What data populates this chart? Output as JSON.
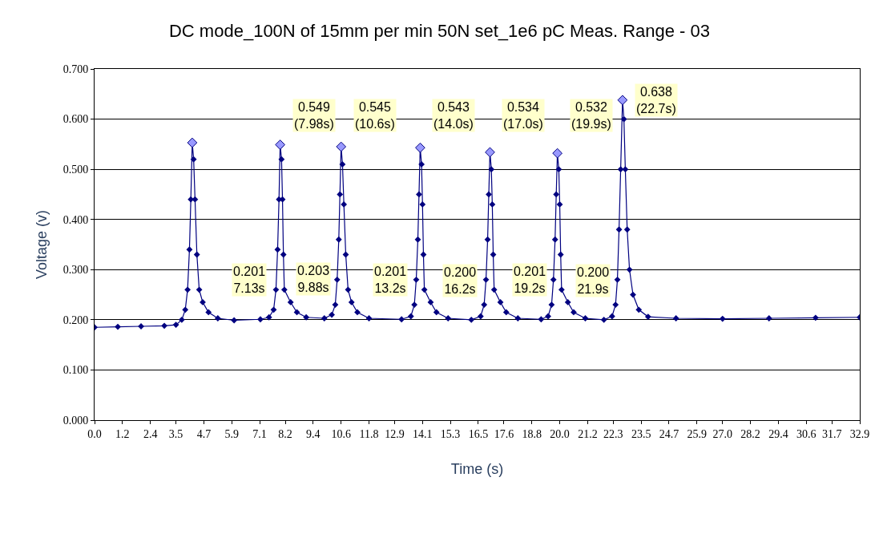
{
  "chart_data": {
    "type": "line",
    "title": "DC mode_100N of 15mm per min 50N set_1e6 pC Meas. Range - 03",
    "xlabel": "Time (s)",
    "ylabel": "Voltage (v)",
    "series": [
      {
        "color": "#000080",
        "x": [
          0.0,
          1.0,
          2.0,
          3.0,
          3.5,
          3.75,
          3.9,
          4.0,
          4.08,
          4.14,
          4.2,
          4.26,
          4.32,
          4.4,
          4.5,
          4.65,
          4.9,
          5.3,
          6.0,
          7.13,
          7.5,
          7.7,
          7.8,
          7.87,
          7.93,
          7.98,
          8.04,
          8.08,
          8.12,
          8.16,
          8.43,
          8.7,
          9.1,
          9.88,
          10.2,
          10.35,
          10.43,
          10.5,
          10.55,
          10.6,
          10.66,
          10.72,
          10.8,
          10.9,
          11.05,
          11.3,
          11.8,
          13.2,
          13.6,
          13.75,
          13.83,
          13.9,
          13.95,
          14.0,
          14.06,
          14.1,
          14.14,
          14.18,
          14.45,
          14.7,
          15.2,
          16.2,
          16.6,
          16.75,
          16.83,
          16.9,
          16.95,
          17.0,
          17.06,
          17.1,
          17.14,
          17.18,
          17.45,
          17.7,
          18.2,
          19.2,
          19.5,
          19.65,
          19.73,
          19.8,
          19.85,
          19.9,
          19.96,
          20.0,
          20.04,
          20.08,
          20.35,
          20.6,
          21.1,
          21.9,
          22.25,
          22.4,
          22.48,
          22.55,
          22.62,
          22.7,
          22.76,
          22.82,
          22.9,
          23.0,
          23.15,
          23.4,
          23.8,
          25.0,
          27.0,
          29.0,
          31.0,
          32.9
        ],
        "values": [
          0.185,
          0.186,
          0.187,
          0.188,
          0.19,
          0.2,
          0.22,
          0.26,
          0.34,
          0.44,
          0.553,
          0.52,
          0.44,
          0.33,
          0.26,
          0.235,
          0.215,
          0.203,
          0.199,
          0.201,
          0.205,
          0.22,
          0.26,
          0.34,
          0.44,
          0.549,
          0.52,
          0.44,
          0.33,
          0.26,
          0.235,
          0.215,
          0.205,
          0.203,
          0.21,
          0.23,
          0.28,
          0.36,
          0.45,
          0.545,
          0.51,
          0.43,
          0.33,
          0.26,
          0.235,
          0.215,
          0.203,
          0.201,
          0.207,
          0.23,
          0.28,
          0.36,
          0.45,
          0.543,
          0.51,
          0.43,
          0.33,
          0.26,
          0.235,
          0.215,
          0.203,
          0.2,
          0.207,
          0.23,
          0.28,
          0.36,
          0.45,
          0.534,
          0.5,
          0.43,
          0.33,
          0.26,
          0.235,
          0.215,
          0.203,
          0.201,
          0.207,
          0.23,
          0.28,
          0.36,
          0.45,
          0.532,
          0.5,
          0.43,
          0.33,
          0.26,
          0.235,
          0.215,
          0.203,
          0.2,
          0.207,
          0.23,
          0.28,
          0.38,
          0.5,
          0.638,
          0.6,
          0.5,
          0.38,
          0.3,
          0.25,
          0.22,
          0.206,
          0.203,
          0.202,
          0.203,
          0.204,
          0.205
        ]
      },
      {
        "type": "scatter",
        "color": "#9999ff",
        "x": [
          4.2,
          7.98,
          10.6,
          14.0,
          17.0,
          19.9,
          22.7
        ],
        "values": [
          0.553,
          0.549,
          0.545,
          0.543,
          0.534,
          0.532,
          0.638
        ]
      }
    ],
    "marker": "diamond",
    "xlim": [
      0,
      32.9
    ],
    "xticks": [
      {
        "value": 0,
        "label": "0.0"
      },
      1.2,
      2.4,
      3.5,
      4.7,
      5.9,
      7.1,
      8.2,
      9.4,
      10.6,
      11.8,
      12.9,
      14.1,
      15.3,
      16.5,
      17.6,
      18.8,
      {
        "value": 20,
        "label": "20.0"
      },
      21.2,
      22.3,
      23.5,
      24.7,
      25.9,
      {
        "value": 27,
        "label": "27.0"
      },
      28.2,
      29.4,
      30.6,
      31.7,
      32.9
    ],
    "ylim": [
      0,
      0.7
    ],
    "yticks": [
      {
        "value": 0,
        "label": "0.000"
      },
      {
        "value": 0.1,
        "label": "0.100"
      },
      {
        "value": 0.2,
        "label": "0.200"
      },
      {
        "value": 0.3,
        "label": "0.300"
      },
      {
        "value": 0.4,
        "label": "0.400"
      },
      {
        "value": 0.5,
        "label": "0.500"
      },
      {
        "value": 0.6,
        "label": "0.600"
      },
      {
        "value": 0.7,
        "label": "0.700"
      }
    ],
    "grid": "y",
    "annotations": [
      {
        "text": "0.549\n(7.98s)",
        "x": 7.98,
        "y": 0.549
      },
      {
        "text": "0.545\n(10.6s)",
        "x": 10.6,
        "y": 0.545
      },
      {
        "text": "0.543\n(14.0s)",
        "x": 14.0,
        "y": 0.543
      },
      {
        "text": "0.534\n(17.0s)",
        "x": 17.0,
        "y": 0.534
      },
      {
        "text": "0.532\n(19.9s)",
        "x": 19.9,
        "y": 0.532
      },
      {
        "text": "0.638\n(22.7s)",
        "x": 22.7,
        "y": 0.638
      },
      {
        "text": "0.201\n7.13s",
        "x": 7.13,
        "y": 0.201
      },
      {
        "text": "0.203\n9.88s",
        "x": 9.88,
        "y": 0.203
      },
      {
        "text": "0.201\n13.2s",
        "x": 13.2,
        "y": 0.201
      },
      {
        "text": "0.200\n16.2s",
        "x": 16.2,
        "y": 0.2
      },
      {
        "text": "0.201\n19.2s",
        "x": 19.2,
        "y": 0.201
      },
      {
        "text": "0.200\n21.9s",
        "x": 21.9,
        "y": 0.2
      }
    ]
  }
}
